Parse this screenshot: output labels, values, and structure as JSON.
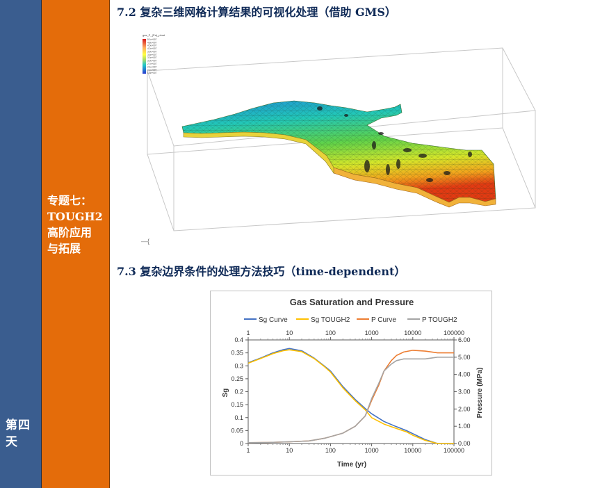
{
  "sidebar": {
    "day": "第四天",
    "topic_lines": [
      "专题七：",
      "TOUGH2",
      "高阶应用",
      "与拓展"
    ]
  },
  "sections": {
    "s1_title": "7.2  复杂三维网格计算结果的可视化处理（借助 GMS）",
    "s2_title": "7.3  复杂边界条件的处理方法技巧（time-dependent）"
  },
  "gms_figure": {
    "legend_title": "gas_P_(Pa)_ploat",
    "legend_values": [
      "5.1e+007",
      "4.8e+007",
      "4.5e+007",
      "4.2e+007",
      "3.9e+007",
      "3.6e+007",
      "3.3e+007",
      "3.0e+007",
      "2.7e+007",
      "2.4e+007",
      "2.1e+007",
      "1.8e+007"
    ],
    "corner_mark": "—{"
  },
  "chart_data": {
    "type": "line",
    "title": "Gas Saturation and Pressure",
    "xlabel": "Time (yr)",
    "ylabel": "Sg",
    "y2label": "Pressure (MPa)",
    "xscale": "log",
    "xlim": [
      1,
      100000
    ],
    "ylim": [
      0,
      0.4
    ],
    "y2lim": [
      0,
      6
    ],
    "x_ticks": [
      "1",
      "10",
      "100",
      "1000",
      "10000",
      "100000"
    ],
    "y_ticks": [
      "0",
      "0.05",
      "0.1",
      "0.15",
      "0.2",
      "0.25",
      "0.3",
      "0.35",
      "0.4"
    ],
    "y2_ticks": [
      "0.00",
      "1.00",
      "2.00",
      "3.00",
      "4.00",
      "5.00",
      "6.00"
    ],
    "legend_position": "top",
    "series": [
      {
        "name": "Sg Curve",
        "axis": "left",
        "color": "#4472c4",
        "x": [
          1,
          2,
          4,
          7,
          10,
          20,
          40,
          70,
          100,
          200,
          400,
          700,
          1000,
          2000,
          4000,
          7000,
          10000,
          20000,
          40000,
          100000
        ],
        "y": [
          0.312,
          0.33,
          0.35,
          0.362,
          0.367,
          0.358,
          0.33,
          0.3,
          0.28,
          0.22,
          0.17,
          0.135,
          0.115,
          0.085,
          0.065,
          0.05,
          0.038,
          0.015,
          0.0,
          0.0
        ]
      },
      {
        "name": "Sg TOUGH2",
        "axis": "left",
        "color": "#ffc000",
        "x": [
          1,
          2,
          4,
          7,
          10,
          20,
          40,
          70,
          100,
          200,
          400,
          700,
          1000,
          2000,
          4000,
          7000,
          10000,
          20000,
          40000,
          100000
        ],
        "y": [
          0.31,
          0.328,
          0.347,
          0.358,
          0.362,
          0.355,
          0.328,
          0.298,
          0.276,
          0.215,
          0.165,
          0.13,
          0.1,
          0.075,
          0.058,
          0.045,
          0.032,
          0.012,
          0.0,
          0.0
        ]
      },
      {
        "name": "P Curve",
        "axis": "right",
        "color": "#ed7d31",
        "x": [
          1,
          3,
          10,
          30,
          70,
          100,
          200,
          400,
          700,
          1000,
          1500,
          2000,
          3000,
          4000,
          6000,
          10000,
          20000,
          40000,
          100000
        ],
        "y": [
          0.05,
          0.06,
          0.1,
          0.15,
          0.3,
          0.4,
          0.6,
          1.0,
          1.6,
          2.5,
          3.4,
          4.2,
          4.8,
          5.1,
          5.3,
          5.4,
          5.35,
          5.25,
          5.25
        ]
      },
      {
        "name": "P TOUGH2",
        "axis": "right",
        "color": "#a5a5a5",
        "x": [
          1,
          3,
          10,
          30,
          70,
          100,
          200,
          400,
          700,
          1000,
          1500,
          2000,
          3000,
          4000,
          6000,
          10000,
          20000,
          40000,
          100000
        ],
        "y": [
          0.05,
          0.06,
          0.1,
          0.15,
          0.3,
          0.4,
          0.6,
          1.0,
          1.6,
          2.6,
          3.5,
          4.2,
          4.6,
          4.8,
          4.9,
          4.9,
          4.9,
          5.0,
          5.0
        ]
      }
    ]
  }
}
